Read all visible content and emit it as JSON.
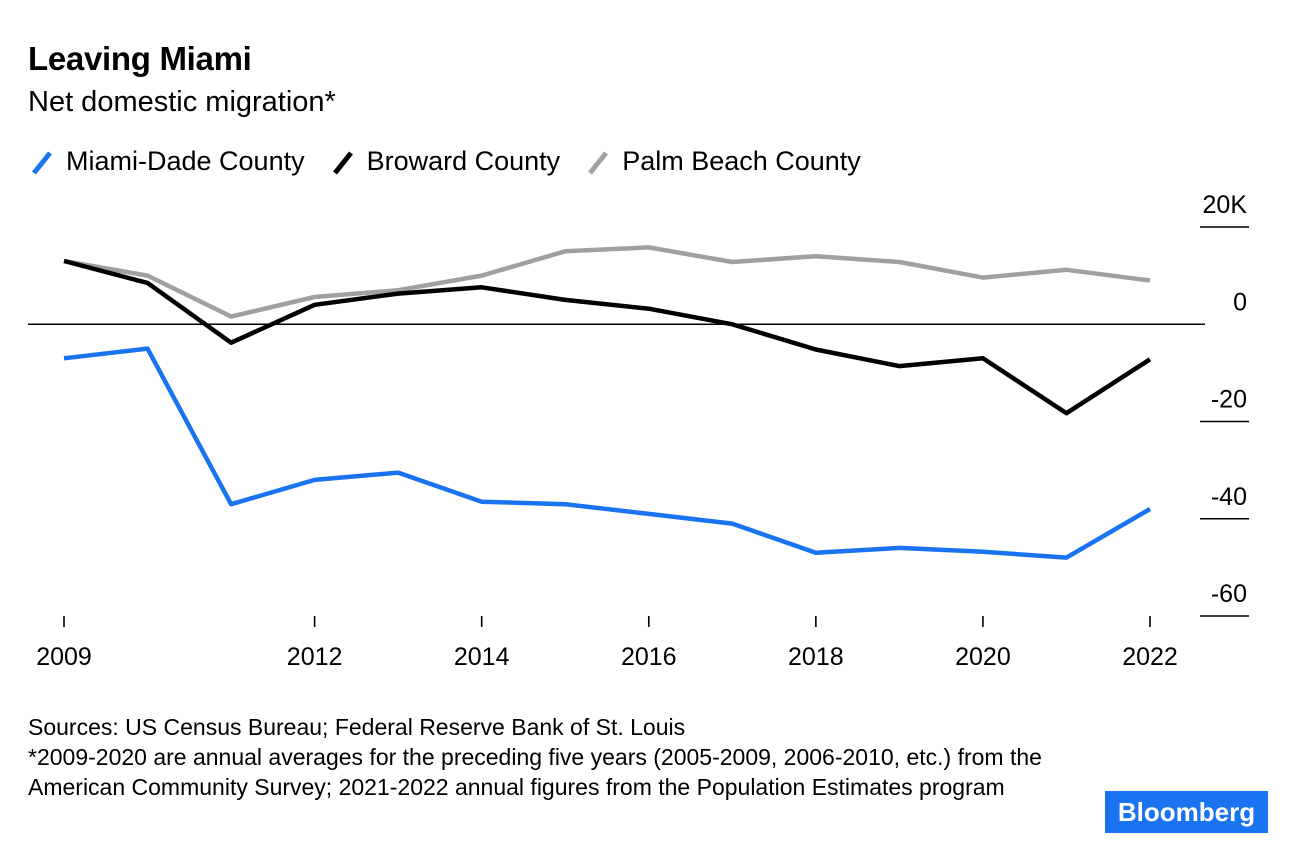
{
  "header": {
    "title": "Leaving Miami",
    "subtitle": "Net domestic migration*"
  },
  "legend": [
    {
      "label": "Miami-Dade County",
      "color": "#1a73f0"
    },
    {
      "label": "Broward County",
      "color": "#000000"
    },
    {
      "label": "Palm Beach County",
      "color": "#a0a0a0"
    }
  ],
  "footer": {
    "sources": "Sources: US Census Bureau; Federal Reserve Bank of St. Louis",
    "note": "*2009-2020 are annual averages for the preceding five years (2005-2009, 2006-2010, etc.) from the American Community Survey; 2021-2022 annual figures from the Population Estimates program",
    "brand": "Bloomberg"
  },
  "chart_data": {
    "type": "line",
    "title": "Leaving Miami",
    "subtitle": "Net domestic migration*",
    "x": [
      2009,
      2010,
      2011,
      2012,
      2013,
      2014,
      2015,
      2016,
      2017,
      2018,
      2019,
      2020,
      2021,
      2022
    ],
    "x_tick_values": [
      2009,
      2012,
      2014,
      2016,
      2018,
      2020,
      2022
    ],
    "x_tick_labels": [
      "2009",
      "2012",
      "2014",
      "2016",
      "2018",
      "2020",
      "2022"
    ],
    "xlim": [
      2009,
      2022
    ],
    "ylim": [
      -60,
      20
    ],
    "y_tick_values": [
      20,
      0,
      -20,
      -40,
      -60
    ],
    "y_tick_labels": [
      "20K",
      "0",
      "-20",
      "-40",
      "-60"
    ],
    "y_unit": "thousands",
    "zero_line": true,
    "series": [
      {
        "name": "Miami-Dade County",
        "color": "#1a73f0",
        "values": [
          -7,
          -5,
          -37,
          -32,
          -30.5,
          -36.5,
          -37,
          -39,
          -41,
          -47,
          -46,
          -46.8,
          -48,
          -38
        ]
      },
      {
        "name": "Broward County",
        "color": "#000000",
        "values": [
          13,
          8.5,
          -3.8,
          4,
          6.3,
          7.6,
          5,
          3.2,
          0,
          -5.2,
          -8.6,
          -7,
          -18.3,
          -7.2
        ]
      },
      {
        "name": "Palm Beach County",
        "color": "#a0a0a0",
        "values": [
          13,
          10,
          1.6,
          5.6,
          7,
          10,
          15,
          15.8,
          12.8,
          14,
          12.8,
          9.6,
          11.2,
          9
        ]
      }
    ]
  }
}
